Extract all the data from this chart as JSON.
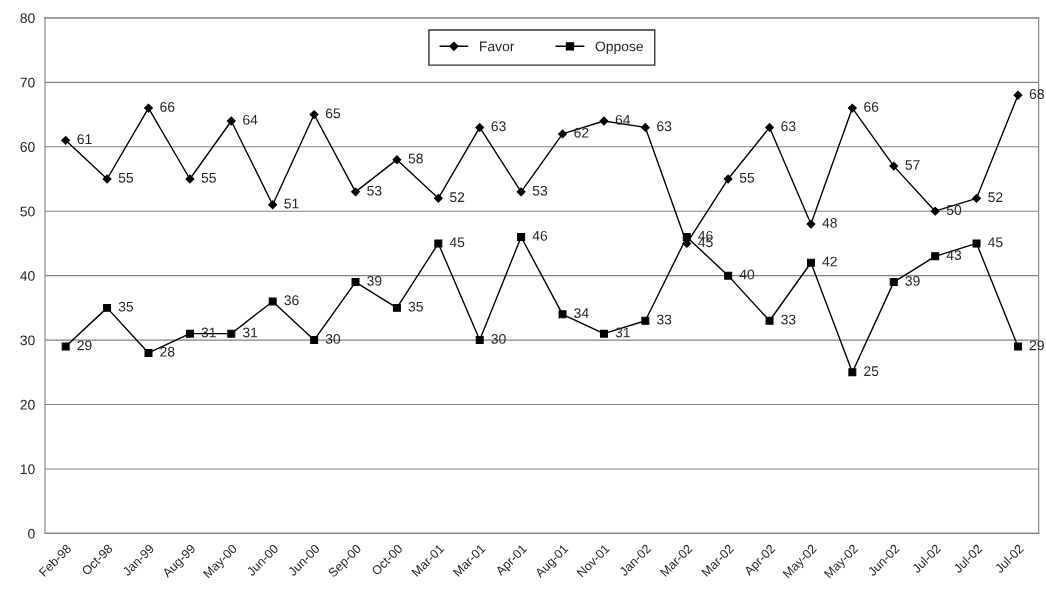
{
  "chart_data": {
    "type": "line",
    "categories": [
      "Feb-98",
      "Oct-98",
      "Jan-99",
      "Aug-99",
      "May-00",
      "Jun-00",
      "Jun-00",
      "Sep-00",
      "Oct-00",
      "Mar-01",
      "Mar-01",
      "Apr-01",
      "Aug-01",
      "Nov-01",
      "Jan-02",
      "Mar-02",
      "Mar-02",
      "Apr-02",
      "May-02",
      "May-02",
      "Jun-02",
      "Jul-02",
      "Jul-02",
      "Jul-02"
    ],
    "series": [
      {
        "name": "Favor",
        "color": "#000000",
        "marker": "diamond",
        "values": [
          61,
          55,
          66,
          55,
          64,
          51,
          65,
          53,
          58,
          52,
          63,
          53,
          62,
          64,
          63,
          45,
          55,
          63,
          48,
          66,
          57,
          50,
          52,
          68
        ]
      },
      {
        "name": "Oppose",
        "color": "#000000",
        "marker": "square",
        "values": [
          29,
          35,
          28,
          31,
          31,
          36,
          30,
          39,
          35,
          45,
          30,
          46,
          34,
          31,
          33,
          46,
          40,
          33,
          42,
          25,
          39,
          43,
          45,
          29
        ]
      }
    ],
    "ylim": [
      0,
      80
    ],
    "yticks": [
      0,
      10,
      20,
      30,
      40,
      50,
      60,
      70,
      80
    ],
    "grid": "y",
    "legend": "top",
    "data_labels": true,
    "line_style": "solid"
  }
}
